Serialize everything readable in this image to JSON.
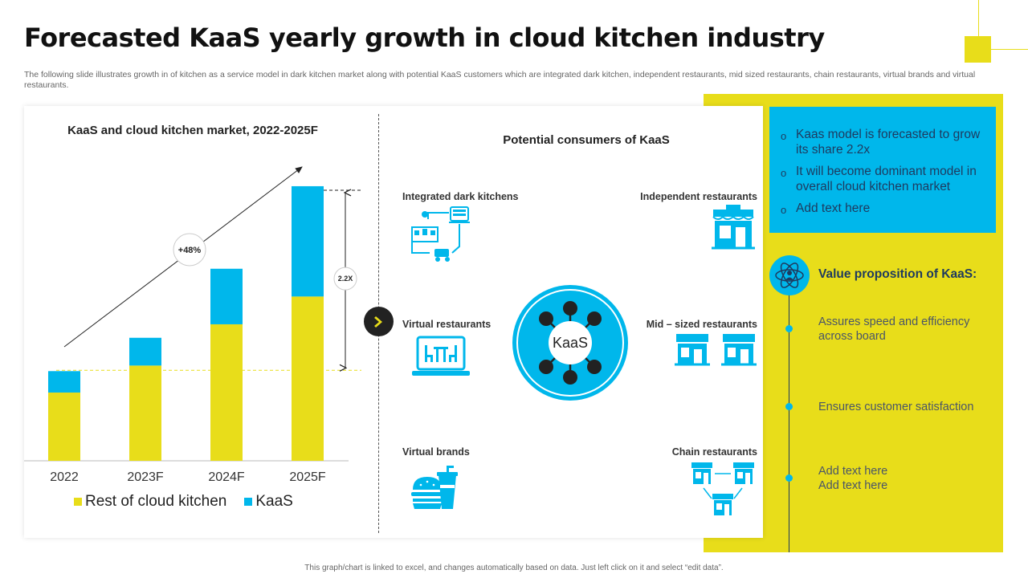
{
  "header": {
    "title": "Forecasted KaaS yearly growth in cloud kitchen industry",
    "subtitle": "The following slide illustrates growth in of kitchen as a service model in dark kitchen market along with potential KaaS customers which are integrated dark kitchen, independent restaurants, mid sized restaurants, chain restaurants, virtual brands and virtual restaurants."
  },
  "colors": {
    "yellow": "#e8dd1a",
    "blue": "#00b7eb",
    "navy": "#1e3a5f",
    "dark": "#222222"
  },
  "chart_data": {
    "type": "bar",
    "stacked": true,
    "title": "KaaS and cloud kitchen market, 2022-2025F",
    "categories": [
      "2022",
      "2023F",
      "2024F",
      "2025F"
    ],
    "series": [
      {
        "name": "Rest of cloud kitchen",
        "color": "#e8dd1a",
        "values": [
          86,
          120,
          172,
          207
        ]
      },
      {
        "name": "KaaS",
        "color": "#00b7eb",
        "values": [
          27,
          35,
          70,
          139
        ]
      }
    ],
    "ylim": [
      0,
      350
    ],
    "annotations": {
      "growth_label": "+48%",
      "multiplier_label": "2.2X"
    }
  },
  "consumers": {
    "title": "Potential consumers of KaaS",
    "center_label": "KaaS",
    "items": [
      {
        "label": "Integrated dark kitchens",
        "icon": "dark-kitchen-icon"
      },
      {
        "label": "Independent restaurants",
        "icon": "storefront-icon"
      },
      {
        "label": "Virtual restaurants",
        "icon": "laptop-dining-icon"
      },
      {
        "label": "Mid – sized restaurants",
        "icon": "twin-storefront-icon"
      },
      {
        "label": "Virtual brands",
        "icon": "burger-drink-icon"
      },
      {
        "label": "Chain restaurants",
        "icon": "store-network-icon"
      }
    ]
  },
  "highlights": {
    "bullets": [
      "Kaas model is forecasted to grow its share 2.2x",
      "It will become dominant model in overall cloud kitchen market",
      "Add text here"
    ]
  },
  "value_prop": {
    "title": "Value proposition of KaaS:",
    "icon": "atom-person-icon",
    "items": [
      "Assures speed and efficiency across board",
      "Ensures customer satisfaction",
      "Add text here Add text here"
    ]
  },
  "footer": "This graph/chart is linked to excel, and changes automatically based on data. Just left click on it and select “edit data”."
}
